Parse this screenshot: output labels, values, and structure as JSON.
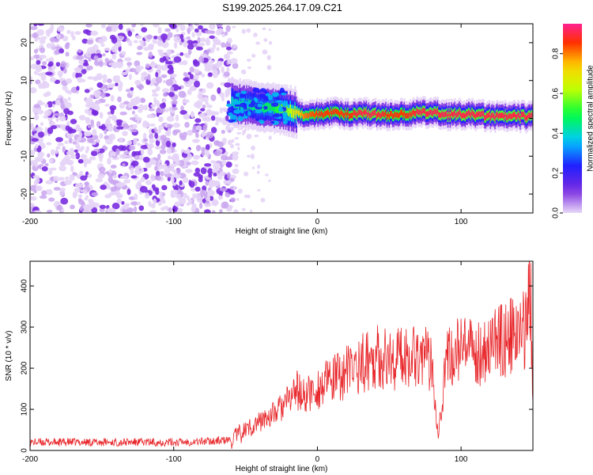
{
  "title": "S199.2025.264.17.09.C21",
  "colors": {
    "snr_line": "#e8262a",
    "signal_core": "#e8262a",
    "noise": "#7a2be0",
    "axis": "#000000"
  },
  "chart_data": [
    {
      "type": "heatmap",
      "title": "S199.2025.264.17.09.C21",
      "xlabel": "Height of straight line (km)",
      "ylabel": "Frequency (Hz)",
      "xlim": [
        -200,
        150
      ],
      "ylim": [
        -25,
        25
      ],
      "xticks": [
        -200,
        -100,
        0,
        100
      ],
      "yticks": [
        -20,
        -10,
        0,
        10,
        20
      ],
      "noise_region_x": [
        -200,
        -60
      ],
      "signal_band": {
        "x": [
          -60,
          -50,
          -40,
          -30,
          -20,
          -10,
          0,
          10,
          20,
          30,
          40,
          50,
          60,
          70,
          80,
          90,
          100,
          110,
          120,
          130,
          140,
          150
        ],
        "freq_hz": [
          4,
          3.5,
          3,
          2.5,
          2,
          1,
          1,
          1.5,
          1,
          1.5,
          1,
          1,
          1,
          1.5,
          1.5,
          1,
          1,
          1,
          0.5,
          0.5,
          0.5,
          0.5
        ],
        "amplitude": [
          0.4,
          0.45,
          0.45,
          0.5,
          0.6,
          0.8,
          0.85,
          0.85,
          0.85,
          0.9,
          0.9,
          0.85,
          0.85,
          0.9,
          0.9,
          0.9,
          0.9,
          0.9,
          0.9,
          0.9,
          0.9,
          0.9
        ]
      },
      "colorbar": {
        "label": "Normalized spectral amplitude",
        "range": [
          0.0,
          0.95
        ],
        "ticks": [
          "0.0",
          "0.2",
          "0.4",
          "0.6",
          "0.8"
        ]
      }
    },
    {
      "type": "line",
      "xlabel": "Height of straight line (km)",
      "ylabel": "SNR (10 * v/v)",
      "xlim": [
        -200,
        150
      ],
      "ylim": [
        0,
        460
      ],
      "xticks": [
        -200,
        -100,
        0,
        100
      ],
      "yticks": [
        0,
        100,
        200,
        300,
        400
      ],
      "series": [
        {
          "name": "SNR",
          "x": [
            -200,
            -180,
            -160,
            -140,
            -120,
            -100,
            -80,
            -60,
            -50,
            -40,
            -30,
            -20,
            -15,
            -10,
            0,
            10,
            20,
            30,
            40,
            50,
            60,
            70,
            80,
            84,
            90,
            100,
            110,
            120,
            130,
            140,
            145,
            148,
            150
          ],
          "y": [
            20,
            20,
            20,
            20,
            20,
            20,
            22,
            25,
            50,
            70,
            90,
            120,
            150,
            130,
            150,
            170,
            190,
            210,
            230,
            220,
            230,
            240,
            210,
            40,
            220,
            250,
            230,
            260,
            270,
            280,
            300,
            420,
            150
          ]
        }
      ]
    }
  ]
}
